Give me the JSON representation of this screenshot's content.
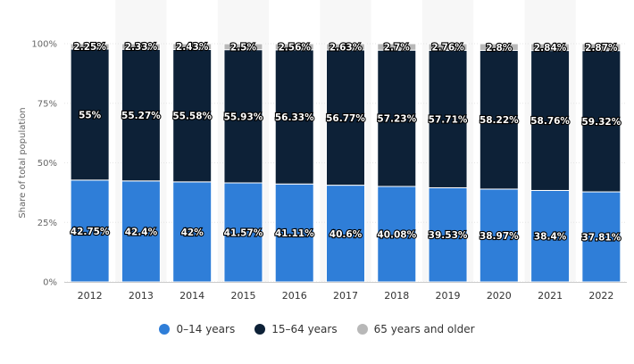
{
  "chart_data": {
    "type": "bar",
    "stacked": true,
    "title": "",
    "xlabel": "",
    "ylabel": "Share of total population",
    "ylim": [
      0,
      100
    ],
    "yticks": [
      "0%",
      "25%",
      "50%",
      "75%",
      "100%"
    ],
    "ytick_values": [
      0,
      25,
      50,
      75,
      100
    ],
    "grid": true,
    "legend_position": "bottom",
    "categories": [
      "2012",
      "2013",
      "2014",
      "2015",
      "2016",
      "2017",
      "2018",
      "2019",
      "2020",
      "2021",
      "2022"
    ],
    "series": [
      {
        "name": "0-14 years",
        "color": "#2f7ed8",
        "values": [
          42.75,
          42.4,
          42,
          41.57,
          41.11,
          40.6,
          40.08,
          39.53,
          38.97,
          38.4,
          37.81
        ],
        "labels": [
          "42.75%",
          "42.4%",
          "42%",
          "41.57%",
          "41.11%",
          "40.6%",
          "40.08%",
          "39.53%",
          "38.97%",
          "38.4%",
          "37.81%"
        ]
      },
      {
        "name": "15-64 years",
        "color": "#0d2137",
        "values": [
          55,
          55.27,
          55.58,
          55.93,
          56.33,
          56.77,
          57.23,
          57.71,
          58.22,
          58.76,
          59.32
        ],
        "labels": [
          "55%",
          "55.27%",
          "55.58%",
          "55.93%",
          "56.33%",
          "56.77%",
          "57.23%",
          "57.71%",
          "58.22%",
          "58.76%",
          "59.32%"
        ]
      },
      {
        "name": "65 years and older",
        "color": "#b8b8b8",
        "values": [
          2.25,
          2.33,
          2.43,
          2.5,
          2.56,
          2.63,
          2.7,
          2.76,
          2.8,
          2.84,
          2.87
        ],
        "labels": [
          "2.25%",
          "2.33%",
          "2.43%",
          "2.5%",
          "2.56%",
          "2.63%",
          "2.7%",
          "2.76%",
          "2.8%",
          "2.84%",
          "2.87%"
        ]
      }
    ]
  },
  "legend": {
    "items": [
      {
        "label": "0–14 years",
        "color": "#2f7ed8"
      },
      {
        "label": "15–64 years",
        "color": "#0d2137"
      },
      {
        "label": "65 years and older",
        "color": "#b8b8b8"
      }
    ]
  }
}
